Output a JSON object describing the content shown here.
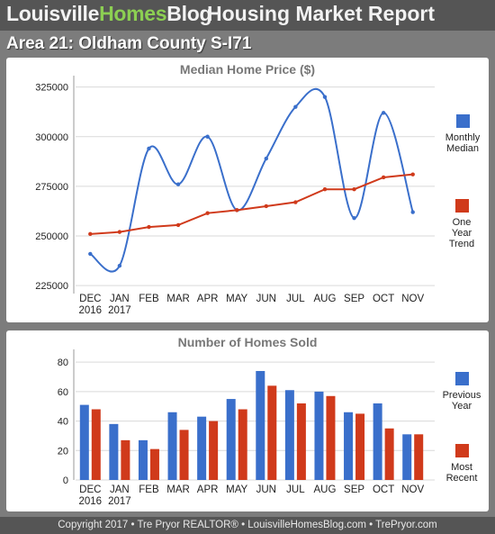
{
  "header": {
    "brand_part1": "Louisville",
    "brand_part2": "Homes",
    "brand_part3": "Blog",
    "report_title": "Housing Market Report"
  },
  "area_title": "Area 21: Oldham County S-I71",
  "footer": "Copyright 2017 • Tre Pryor REALTOR® • LouisvilleHomesBlog.com • TrePryor.com",
  "colors": {
    "blue": "#3a6fcb",
    "red": "#d03a1b",
    "brand_green": "#8ccf52"
  },
  "chart_data": [
    {
      "type": "line",
      "title": "Median Home Price ($)",
      "categories": [
        "DEC 2016",
        "JAN 2017",
        "FEB",
        "MAR",
        "APR",
        "MAY",
        "JUN",
        "JUL",
        "AUG",
        "SEP",
        "OCT",
        "NOV"
      ],
      "series": [
        {
          "name": "Monthly Median",
          "color": "#3a6fcb",
          "smooth": true,
          "values": [
            241000,
            235000,
            294000,
            276000,
            300000,
            263000,
            289000,
            315000,
            320000,
            259000,
            312000,
            262000
          ]
        },
        {
          "name": "One Year Trend",
          "color": "#d03a1b",
          "smooth": false,
          "values": [
            251000,
            252000,
            254500,
            255500,
            261500,
            263000,
            265000,
            267000,
            273500,
            273500,
            279500,
            281000
          ]
        }
      ],
      "yticks": [
        325000,
        300000,
        275000,
        250000,
        225000
      ],
      "ylim": [
        221000,
        328000
      ],
      "legend": [
        {
          "label": "Monthly Median",
          "color": "#3a6fcb"
        },
        {
          "label": "One Year Trend",
          "color": "#d03a1b"
        }
      ],
      "legend_position": "right",
      "grid": true
    },
    {
      "type": "bar",
      "title": "Number of Homes Sold",
      "categories": [
        "DEC 2016",
        "JAN 2017",
        "FEB",
        "MAR",
        "APR",
        "MAY",
        "JUN",
        "JUL",
        "AUG",
        "SEP",
        "OCT",
        "NOV"
      ],
      "series": [
        {
          "name": "Previous Year",
          "color": "#3a6fcb",
          "values": [
            51,
            38,
            27,
            46,
            43,
            55,
            74,
            61,
            60,
            46,
            52,
            31
          ]
        },
        {
          "name": "Most Recent",
          "color": "#d03a1b",
          "values": [
            48,
            27,
            21,
            34,
            40,
            48,
            64,
            52,
            57,
            45,
            35,
            31
          ]
        }
      ],
      "yticks": [
        80,
        60,
        40,
        20,
        0
      ],
      "ylim": [
        0,
        85
      ],
      "legend": [
        {
          "label": "Previous Year",
          "color": "#3a6fcb"
        },
        {
          "label": "Most Recent",
          "color": "#d03a1b"
        }
      ],
      "legend_position": "right",
      "grid": true
    }
  ]
}
